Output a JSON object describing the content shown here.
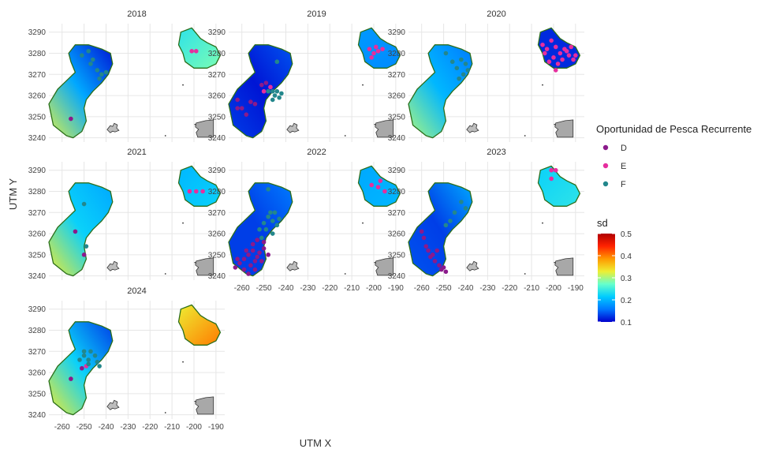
{
  "chart_data": {
    "type": "scatter",
    "facets": [
      "2018",
      "2019",
      "2020",
      "2021",
      "2022",
      "2023",
      "2024"
    ],
    "xlabel": "UTM X",
    "ylabel": "UTM Y",
    "xlim": [
      -266,
      -186
    ],
    "ylim": [
      3238,
      3294
    ],
    "x_ticks": [
      -260,
      -250,
      -240,
      -230,
      -220,
      -210,
      -200,
      -190
    ],
    "y_ticks": [
      3240,
      3250,
      3260,
      3270,
      3280,
      3290
    ],
    "grid": true,
    "legend_points": {
      "title": "Oportunidad de Pesca Recurrente",
      "entries": [
        {
          "label": "D",
          "color": "#8B1A8B"
        },
        {
          "label": "E",
          "color": "#E62E9E"
        },
        {
          "label": "F",
          "color": "#23878C"
        }
      ]
    },
    "legend_fill": {
      "title": "sd",
      "min": 0.1,
      "max": 0.5,
      "ticks": [
        0.1,
        0.2,
        0.3,
        0.4,
        0.5
      ],
      "colors": [
        "#0000CC",
        "#0077FF",
        "#00CCFF",
        "#66FFCC",
        "#EEEE33",
        "#FF9900",
        "#FF2200",
        "#B00000"
      ]
    },
    "regions": {
      "west": [
        [
          -258,
          3241
        ],
        [
          -264,
          3246
        ],
        [
          -266,
          3256
        ],
        [
          -262,
          3263
        ],
        [
          -258,
          3267
        ],
        [
          -254,
          3271
        ],
        [
          -256,
          3276
        ],
        [
          -257,
          3280
        ],
        [
          -254,
          3284
        ],
        [
          -248,
          3284
        ],
        [
          -242,
          3282
        ],
        [
          -238,
          3280
        ],
        [
          -237,
          3275
        ],
        [
          -239,
          3270
        ],
        [
          -242,
          3266
        ],
        [
          -246,
          3262
        ],
        [
          -249,
          3258
        ],
        [
          -250,
          3254
        ],
        [
          -249,
          3248
        ],
        [
          -251,
          3243
        ],
        [
          -255,
          3240
        ]
      ],
      "east": [
        [
          -206,
          3290
        ],
        [
          -207,
          3284
        ],
        [
          -205,
          3280
        ],
        [
          -204,
          3276
        ],
        [
          -200,
          3273
        ],
        [
          -194,
          3273
        ],
        [
          -190,
          3275
        ],
        [
          -188,
          3279
        ],
        [
          -190,
          3283
        ],
        [
          -194,
          3285
        ],
        [
          -197,
          3287
        ],
        [
          -201,
          3292
        ]
      ]
    },
    "panels": [
      {
        "year": "2018",
        "west_sd": [
          0.32,
          0.19,
          0.11
        ],
        "east_sd": [
          0.24,
          0.28
        ],
        "points": [
          {
            "cat": "D",
            "x": -256,
            "y": 3249
          },
          {
            "cat": "F",
            "x": -251,
            "y": 3279
          },
          {
            "cat": "F",
            "x": -248,
            "y": 3281
          },
          {
            "cat": "F",
            "x": -246,
            "y": 3277
          },
          {
            "cat": "F",
            "x": -244,
            "y": 3272
          },
          {
            "cat": "F",
            "x": -242,
            "y": 3270
          },
          {
            "cat": "F",
            "x": -240,
            "y": 3271
          },
          {
            "cat": "F",
            "x": -243,
            "y": 3268
          },
          {
            "cat": "F",
            "x": -247,
            "y": 3275
          },
          {
            "cat": "E",
            "x": -201,
            "y": 3281
          },
          {
            "cat": "E",
            "x": -199,
            "y": 3281
          }
        ]
      },
      {
        "year": "2019",
        "west_sd": [
          0.13,
          0.11,
          0.14
        ],
        "east_sd": [
          0.18,
          0.17
        ],
        "points": [
          {
            "cat": "D",
            "x": -262,
            "y": 3258
          },
          {
            "cat": "D",
            "x": -260,
            "y": 3254
          },
          {
            "cat": "D",
            "x": -258,
            "y": 3251
          },
          {
            "cat": "D",
            "x": -256,
            "y": 3257
          },
          {
            "cat": "D",
            "x": -254,
            "y": 3256
          },
          {
            "cat": "D",
            "x": -251,
            "y": 3265
          },
          {
            "cat": "D",
            "x": -249,
            "y": 3266
          },
          {
            "cat": "D",
            "x": -262,
            "y": 3254
          },
          {
            "cat": "E",
            "x": -250,
            "y": 3262
          },
          {
            "cat": "E",
            "x": -247,
            "y": 3264
          },
          {
            "cat": "F",
            "x": -246,
            "y": 3258
          },
          {
            "cat": "F",
            "x": -245,
            "y": 3260
          },
          {
            "cat": "F",
            "x": -244,
            "y": 3262
          },
          {
            "cat": "F",
            "x": -243,
            "y": 3259
          },
          {
            "cat": "F",
            "x": -242,
            "y": 3261
          },
          {
            "cat": "F",
            "x": -246,
            "y": 3262
          },
          {
            "cat": "F",
            "x": -244,
            "y": 3276
          },
          {
            "cat": "F",
            "x": -248,
            "y": 3262
          },
          {
            "cat": "E",
            "x": -202,
            "y": 3282
          },
          {
            "cat": "E",
            "x": -200,
            "y": 3280
          },
          {
            "cat": "E",
            "x": -198,
            "y": 3281
          },
          {
            "cat": "E",
            "x": -201,
            "y": 3278
          },
          {
            "cat": "E",
            "x": -196,
            "y": 3282
          },
          {
            "cat": "E",
            "x": -199,
            "y": 3283
          }
        ]
      },
      {
        "year": "2020",
        "west_sd": [
          0.3,
          0.2,
          0.16
        ],
        "east_sd": [
          0.12,
          0.12
        ],
        "points": [
          {
            "cat": "F",
            "x": -249,
            "y": 3280
          },
          {
            "cat": "F",
            "x": -246,
            "y": 3276
          },
          {
            "cat": "F",
            "x": -244,
            "y": 3273
          },
          {
            "cat": "F",
            "x": -242,
            "y": 3277
          },
          {
            "cat": "F",
            "x": -240,
            "y": 3275
          },
          {
            "cat": "F",
            "x": -241,
            "y": 3270
          },
          {
            "cat": "F",
            "x": -243,
            "y": 3268
          },
          {
            "cat": "F",
            "x": -239,
            "y": 3272
          },
          {
            "cat": "E",
            "x": -205,
            "y": 3284
          },
          {
            "cat": "E",
            "x": -203,
            "y": 3282
          },
          {
            "cat": "E",
            "x": -201,
            "y": 3286
          },
          {
            "cat": "E",
            "x": -199,
            "y": 3283
          },
          {
            "cat": "E",
            "x": -197,
            "y": 3280
          },
          {
            "cat": "E",
            "x": -195,
            "y": 3282
          },
          {
            "cat": "E",
            "x": -193,
            "y": 3279
          },
          {
            "cat": "E",
            "x": -191,
            "y": 3277
          },
          {
            "cat": "E",
            "x": -200,
            "y": 3278
          },
          {
            "cat": "E",
            "x": -202,
            "y": 3276
          },
          {
            "cat": "E",
            "x": -198,
            "y": 3275
          },
          {
            "cat": "E",
            "x": -196,
            "y": 3277
          },
          {
            "cat": "E",
            "x": -194,
            "y": 3281
          },
          {
            "cat": "E",
            "x": -192,
            "y": 3283
          },
          {
            "cat": "E",
            "x": -204,
            "y": 3280
          },
          {
            "cat": "E",
            "x": -199,
            "y": 3272
          },
          {
            "cat": "E",
            "x": -190,
            "y": 3279
          }
        ]
      },
      {
        "year": "2021",
        "west_sd": [
          0.33,
          0.22,
          0.19
        ],
        "east_sd": [
          0.2,
          0.22
        ],
        "points": [
          {
            "cat": "D",
            "x": -254,
            "y": 3261
          },
          {
            "cat": "D",
            "x": -250,
            "y": 3250
          },
          {
            "cat": "F",
            "x": -250,
            "y": 3274
          },
          {
            "cat": "F",
            "x": -249,
            "y": 3254
          },
          {
            "cat": "E",
            "x": -202,
            "y": 3280
          },
          {
            "cat": "E",
            "x": -199,
            "y": 3280
          },
          {
            "cat": "E",
            "x": -196,
            "y": 3280
          }
        ]
      },
      {
        "year": "2022",
        "west_sd": [
          0.13,
          0.13,
          0.16
        ],
        "east_sd": [
          0.19,
          0.2
        ],
        "points": [
          {
            "cat": "D",
            "x": -263,
            "y": 3244
          },
          {
            "cat": "D",
            "x": -261,
            "y": 3246
          },
          {
            "cat": "D",
            "x": -259,
            "y": 3248
          },
          {
            "cat": "D",
            "x": -257,
            "y": 3250
          },
          {
            "cat": "D",
            "x": -255,
            "y": 3252
          },
          {
            "cat": "D",
            "x": -253,
            "y": 3249
          },
          {
            "cat": "D",
            "x": -251,
            "y": 3247
          },
          {
            "cat": "D",
            "x": -259,
            "y": 3243
          },
          {
            "cat": "D",
            "x": -256,
            "y": 3245
          },
          {
            "cat": "D",
            "x": -254,
            "y": 3247
          },
          {
            "cat": "D",
            "x": -252,
            "y": 3251
          },
          {
            "cat": "D",
            "x": -250,
            "y": 3253
          },
          {
            "cat": "D",
            "x": -262,
            "y": 3248
          },
          {
            "cat": "D",
            "x": -258,
            "y": 3252
          },
          {
            "cat": "D",
            "x": -255,
            "y": 3255
          },
          {
            "cat": "D",
            "x": -253,
            "y": 3257
          },
          {
            "cat": "D",
            "x": -250,
            "y": 3256
          },
          {
            "cat": "D",
            "x": -248,
            "y": 3250
          },
          {
            "cat": "D",
            "x": -257,
            "y": 3241
          },
          {
            "cat": "D",
            "x": -254,
            "y": 3243
          },
          {
            "cat": "F",
            "x": -252,
            "y": 3262
          },
          {
            "cat": "F",
            "x": -250,
            "y": 3265
          },
          {
            "cat": "F",
            "x": -248,
            "y": 3268
          },
          {
            "cat": "F",
            "x": -246,
            "y": 3266
          },
          {
            "cat": "F",
            "x": -244,
            "y": 3264
          },
          {
            "cat": "F",
            "x": -247,
            "y": 3270
          },
          {
            "cat": "F",
            "x": -249,
            "y": 3262
          },
          {
            "cat": "F",
            "x": -245,
            "y": 3270
          },
          {
            "cat": "F",
            "x": -246,
            "y": 3260
          },
          {
            "cat": "F",
            "x": -248,
            "y": 3281
          },
          {
            "cat": "F",
            "x": -243,
            "y": 3267
          },
          {
            "cat": "F",
            "x": -251,
            "y": 3258
          },
          {
            "cat": "E",
            "x": -201,
            "y": 3283
          },
          {
            "cat": "E",
            "x": -198,
            "y": 3282
          },
          {
            "cat": "E",
            "x": -195,
            "y": 3280
          },
          {
            "cat": "E",
            "x": -197,
            "y": 3285
          }
        ]
      },
      {
        "year": "2023",
        "west_sd": [
          0.14,
          0.13,
          0.19
        ],
        "east_sd": [
          0.22,
          0.24
        ],
        "points": [
          {
            "cat": "D",
            "x": -259,
            "y": 3258
          },
          {
            "cat": "D",
            "x": -258,
            "y": 3254
          },
          {
            "cat": "D",
            "x": -257,
            "y": 3252
          },
          {
            "cat": "D",
            "x": -256,
            "y": 3249
          },
          {
            "cat": "D",
            "x": -254,
            "y": 3247
          },
          {
            "cat": "D",
            "x": -252,
            "y": 3245
          },
          {
            "cat": "D",
            "x": -251,
            "y": 3243
          },
          {
            "cat": "D",
            "x": -255,
            "y": 3250
          },
          {
            "cat": "D",
            "x": -253,
            "y": 3252
          },
          {
            "cat": "D",
            "x": -260,
            "y": 3261
          },
          {
            "cat": "D",
            "x": -250,
            "y": 3244
          },
          {
            "cat": "D",
            "x": -249,
            "y": 3242
          },
          {
            "cat": "F",
            "x": -249,
            "y": 3264
          },
          {
            "cat": "F",
            "x": -247,
            "y": 3266
          },
          {
            "cat": "F",
            "x": -245,
            "y": 3270
          },
          {
            "cat": "F",
            "x": -242,
            "y": 3275
          },
          {
            "cat": "F",
            "x": -240,
            "y": 3272
          },
          {
            "cat": "E",
            "x": -201,
            "y": 3290
          },
          {
            "cat": "E",
            "x": -199,
            "y": 3290
          },
          {
            "cat": "E",
            "x": -201,
            "y": 3286
          }
        ]
      },
      {
        "year": "2024",
        "west_sd": [
          0.33,
          0.22,
          0.13
        ],
        "east_sd": [
          0.33,
          0.4
        ],
        "points": [
          {
            "cat": "D",
            "x": -256,
            "y": 3257
          },
          {
            "cat": "D",
            "x": -251,
            "y": 3262
          },
          {
            "cat": "E",
            "x": -249,
            "y": 3263
          },
          {
            "cat": "F",
            "x": -252,
            "y": 3266
          },
          {
            "cat": "F",
            "x": -250,
            "y": 3268
          },
          {
            "cat": "F",
            "x": -248,
            "y": 3266
          },
          {
            "cat": "F",
            "x": -247,
            "y": 3270
          },
          {
            "cat": "F",
            "x": -245,
            "y": 3268
          },
          {
            "cat": "F",
            "x": -244,
            "y": 3265
          },
          {
            "cat": "F",
            "x": -243,
            "y": 3263
          },
          {
            "cat": "F",
            "x": -250,
            "y": 3270
          },
          {
            "cat": "F",
            "x": -248,
            "y": 3264
          }
        ]
      }
    ]
  }
}
